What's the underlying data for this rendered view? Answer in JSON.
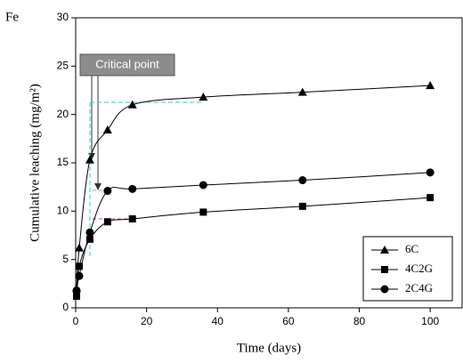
{
  "chart_data": {
    "type": "line",
    "corner_label": "Fe",
    "xlabel": "Time (days)",
    "ylabel": "Cumulative leaching (mg/m²)",
    "annotation": "Critical point",
    "x": [
      0.25,
      1,
      4,
      9,
      16,
      36,
      64,
      100
    ],
    "series": [
      {
        "name": "6C",
        "color": "#000000",
        "marker": "triangle",
        "values": [
          2,
          6.2,
          15.3,
          18.4,
          21,
          21.8,
          22.3,
          23
        ]
      },
      {
        "name": "4C2G",
        "color": "#000000",
        "marker": "square",
        "values": [
          1.2,
          4.3,
          7.1,
          8.9,
          9.2,
          9.9,
          10.5,
          11.4
        ]
      },
      {
        "name": "2C4G",
        "color": "#000000",
        "marker": "circle",
        "values": [
          1.8,
          3.3,
          7.8,
          12.1,
          12.3,
          12.7,
          13.2,
          14.0
        ]
      }
    ],
    "xlim": [
      0,
      109
    ],
    "xticks": [
      0,
      20,
      40,
      60,
      80,
      100
    ],
    "ylim": [
      0,
      30
    ],
    "yticks": [
      0,
      5,
      10,
      15,
      20,
      25,
      30
    ],
    "legend": "lower right"
  }
}
